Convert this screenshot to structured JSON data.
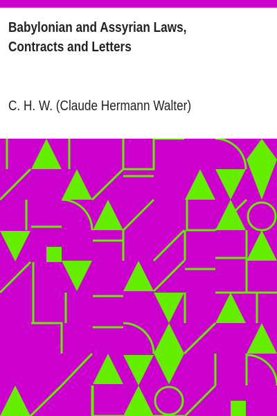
{
  "book": {
    "title_line1": "Babylonian and Assyrian Laws,",
    "title_line2": "Contracts and Letters",
    "author": "C. H. W. (Claude Hermann Walter)"
  },
  "colors": {
    "accent_bar": "#cc00cc",
    "pattern_background": "#cc00cc",
    "pattern_shapes": "#66ee00",
    "text": "#222222"
  }
}
